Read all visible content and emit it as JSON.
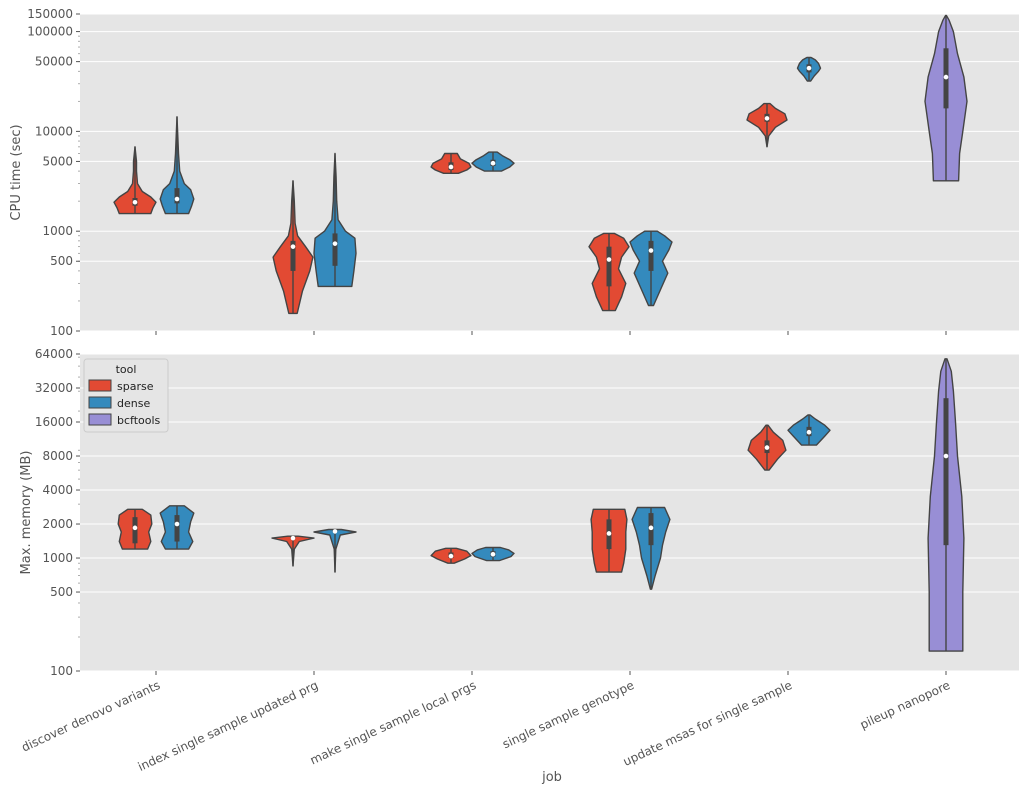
{
  "colors": {
    "sparse": "#E24A33",
    "dense": "#348ABD",
    "bcftools": "#988ED5",
    "panel_bg": "#E5E5E5",
    "grid": "#FFFFFF",
    "edge": "#444444"
  },
  "chart_data": {
    "type": "violin",
    "xlabel": "job",
    "categories": [
      "discover denovo variants",
      "index single sample updated prg",
      "make single sample local prgs",
      "single sample genotype",
      "update msas for single sample",
      "pileup nanopore"
    ],
    "legend": {
      "title": "tool",
      "placement": "upper-left of bottom panel",
      "entries": [
        "sparse",
        "dense",
        "bcftools"
      ]
    },
    "panels": [
      {
        "ylabel": "CPU time (sec)",
        "yscale": "log",
        "ylim": [
          100,
          150000
        ],
        "yticks": [
          100,
          500,
          1000,
          5000,
          10000,
          50000,
          100000,
          150000
        ],
        "series": [
          {
            "name": "sparse",
            "category": "discover denovo variants",
            "min": 1500,
            "q1": 1800,
            "median": 1950,
            "q3": 2150,
            "max": 7000,
            "shape": [
              [
                1500,
                0.75
              ],
              [
                1700,
                0.85
              ],
              [
                1950,
                1.0
              ],
              [
                2200,
                0.75
              ],
              [
                2500,
                0.35
              ],
              [
                3000,
                0.12
              ],
              [
                4000,
                0.07
              ],
              [
                5000,
                0.07
              ],
              [
                7000,
                0.0
              ]
            ]
          },
          {
            "name": "dense",
            "category": "discover denovo variants",
            "min": 1500,
            "q1": 1900,
            "median": 2100,
            "q3": 2700,
            "max": 14000,
            "shape": [
              [
                1500,
                0.55
              ],
              [
                1800,
                0.7
              ],
              [
                2100,
                0.8
              ],
              [
                2600,
                0.65
              ],
              [
                3000,
                0.35
              ],
              [
                4000,
                0.13
              ],
              [
                6000,
                0.07
              ],
              [
                9000,
                0.04
              ],
              [
                14000,
                0.0
              ]
            ]
          },
          {
            "name": "sparse",
            "category": "index single sample updated prg",
            "min": 150,
            "q1": 400,
            "median": 700,
            "q3": 800,
            "max": 3200,
            "shape": [
              [
                150,
                0.2
              ],
              [
                250,
                0.45
              ],
              [
                400,
                0.8
              ],
              [
                550,
                0.95
              ],
              [
                700,
                0.6
              ],
              [
                900,
                0.22
              ],
              [
                1200,
                0.1
              ],
              [
                2000,
                0.06
              ],
              [
                3200,
                0.0
              ]
            ]
          },
          {
            "name": "dense",
            "category": "index single sample updated prg",
            "min": 280,
            "q1": 450,
            "median": 750,
            "q3": 950,
            "max": 6000,
            "shape": [
              [
                280,
                0.8
              ],
              [
                400,
                0.9
              ],
              [
                600,
                1.0
              ],
              [
                850,
                0.95
              ],
              [
                1000,
                0.5
              ],
              [
                1300,
                0.15
              ],
              [
                2000,
                0.08
              ],
              [
                3500,
                0.05
              ],
              [
                6000,
                0.0
              ]
            ]
          },
          {
            "name": "sparse",
            "category": "make single sample local prgs",
            "min": 3800,
            "q1": 4100,
            "median": 4400,
            "q3": 4900,
            "max": 6000,
            "shape": [
              [
                3800,
                0.35
              ],
              [
                4100,
                0.75
              ],
              [
                4400,
                0.95
              ],
              [
                4800,
                0.85
              ],
              [
                5300,
                0.45
              ],
              [
                6000,
                0.3
              ]
            ]
          },
          {
            "name": "dense",
            "category": "make single sample local prgs",
            "min": 4000,
            "q1": 4500,
            "median": 4800,
            "q3": 5200,
            "max": 6200,
            "shape": [
              [
                4000,
                0.4
              ],
              [
                4400,
                0.8
              ],
              [
                4800,
                1.0
              ],
              [
                5200,
                0.8
              ],
              [
                5700,
                0.45
              ],
              [
                6200,
                0.2
              ]
            ]
          },
          {
            "name": "sparse",
            "category": "single sample genotype",
            "min": 160,
            "q1": 280,
            "median": 520,
            "q3": 700,
            "max": 950,
            "shape": [
              [
                160,
                0.3
              ],
              [
                220,
                0.6
              ],
              [
                300,
                0.8
              ],
              [
                420,
                0.45
              ],
              [
                550,
                0.6
              ],
              [
                700,
                0.95
              ],
              [
                850,
                0.7
              ],
              [
                950,
                0.25
              ]
            ]
          },
          {
            "name": "dense",
            "category": "single sample genotype",
            "min": 180,
            "q1": 400,
            "median": 640,
            "q3": 800,
            "max": 1000,
            "shape": [
              [
                180,
                0.12
              ],
              [
                260,
                0.45
              ],
              [
                380,
                0.8
              ],
              [
                500,
                0.55
              ],
              [
                650,
                0.85
              ],
              [
                780,
                1.0
              ],
              [
                900,
                0.65
              ],
              [
                1000,
                0.3
              ]
            ]
          },
          {
            "name": "sparse",
            "category": "update msas for single sample",
            "min": 7000,
            "q1": 12500,
            "median": 13500,
            "q3": 15000,
            "max": 19000,
            "shape": [
              [
                7000,
                0.0
              ],
              [
                9000,
                0.08
              ],
              [
                11000,
                0.4
              ],
              [
                13000,
                0.95
              ],
              [
                15000,
                0.85
              ],
              [
                17000,
                0.4
              ],
              [
                19000,
                0.15
              ]
            ]
          },
          {
            "name": "dense",
            "category": "update msas for single sample",
            "min": 32000,
            "q1": 39000,
            "median": 43000,
            "q3": 47000,
            "max": 55000,
            "shape": [
              [
                32000,
                0.08
              ],
              [
                36000,
                0.25
              ],
              [
                40000,
                0.45
              ],
              [
                43000,
                0.55
              ],
              [
                48000,
                0.45
              ],
              [
                52000,
                0.3
              ],
              [
                55000,
                0.1
              ]
            ]
          },
          {
            "name": "bcftools",
            "category": "pileup nanopore",
            "min": 3200,
            "q1": 17000,
            "median": 35000,
            "q3": 68000,
            "max": 145000,
            "shape": [
              [
                3200,
                0.6
              ],
              [
                6000,
                0.65
              ],
              [
                10000,
                0.8
              ],
              [
                20000,
                1.0
              ],
              [
                35000,
                0.85
              ],
              [
                60000,
                0.55
              ],
              [
                100000,
                0.35
              ],
              [
                130000,
                0.15
              ],
              [
                145000,
                0.02
              ]
            ]
          }
        ]
      },
      {
        "ylabel": "Max. memory (MB)",
        "yscale": "log",
        "ylim": [
          100,
          64000
        ],
        "yticks": [
          100,
          500,
          1000,
          2000,
          4000,
          8000,
          16000,
          32000,
          64000
        ],
        "series": [
          {
            "name": "sparse",
            "category": "discover denovo variants",
            "min": 1200,
            "q1": 1350,
            "median": 1850,
            "q3": 2300,
            "max": 2700,
            "shape": [
              [
                1200,
                0.6
              ],
              [
                1400,
                0.75
              ],
              [
                1700,
                0.65
              ],
              [
                2000,
                0.8
              ],
              [
                2400,
                0.75
              ],
              [
                2700,
                0.35
              ]
            ]
          },
          {
            "name": "dense",
            "category": "discover denovo variants",
            "min": 1200,
            "q1": 1400,
            "median": 2000,
            "q3": 2400,
            "max": 2900,
            "shape": [
              [
                1200,
                0.55
              ],
              [
                1400,
                0.75
              ],
              [
                1700,
                0.55
              ],
              [
                2100,
                0.65
              ],
              [
                2500,
                0.8
              ],
              [
                2900,
                0.35
              ]
            ]
          },
          {
            "name": "sparse",
            "category": "index single sample updated prg",
            "min": 850,
            "q1": 1480,
            "median": 1500,
            "q3": 1540,
            "max": 1560,
            "shape": [
              [
                850,
                0.0
              ],
              [
                1200,
                0.06
              ],
              [
                1400,
                0.3
              ],
              [
                1500,
                1.0
              ],
              [
                1560,
                0.25
              ]
            ]
          },
          {
            "name": "dense",
            "category": "index single sample updated prg",
            "min": 750,
            "q1": 1700,
            "median": 1720,
            "q3": 1750,
            "max": 1790,
            "shape": [
              [
                750,
                0.0
              ],
              [
                1200,
                0.04
              ],
              [
                1600,
                0.25
              ],
              [
                1700,
                1.0
              ],
              [
                1790,
                0.3
              ]
            ]
          },
          {
            "name": "sparse",
            "category": "make single sample local prgs",
            "min": 900,
            "q1": 1000,
            "median": 1040,
            "q3": 1120,
            "max": 1220,
            "shape": [
              [
                900,
                0.15
              ],
              [
                980,
                0.65
              ],
              [
                1050,
                0.95
              ],
              [
                1150,
                0.75
              ],
              [
                1220,
                0.25
              ]
            ]
          },
          {
            "name": "dense",
            "category": "make single sample local prgs",
            "min": 950,
            "q1": 1030,
            "median": 1080,
            "q3": 1150,
            "max": 1240,
            "shape": [
              [
                950,
                0.3
              ],
              [
                1030,
                0.85
              ],
              [
                1100,
                1.0
              ],
              [
                1180,
                0.75
              ],
              [
                1240,
                0.35
              ]
            ]
          },
          {
            "name": "sparse",
            "category": "single sample genotype",
            "min": 750,
            "q1": 1200,
            "median": 1650,
            "q3": 2200,
            "max": 2700,
            "shape": [
              [
                750,
                0.6
              ],
              [
                900,
                0.7
              ],
              [
                1200,
                0.8
              ],
              [
                1700,
                0.8
              ],
              [
                2200,
                0.85
              ],
              [
                2700,
                0.75
              ]
            ]
          },
          {
            "name": "dense",
            "category": "single sample genotype",
            "min": 530,
            "q1": 1300,
            "median": 1850,
            "q3": 2500,
            "max": 2800,
            "shape": [
              [
                530,
                0.03
              ],
              [
                700,
                0.2
              ],
              [
                1000,
                0.45
              ],
              [
                1300,
                0.55
              ],
              [
                1700,
                0.7
              ],
              [
                2200,
                0.9
              ],
              [
                2800,
                0.65
              ]
            ]
          },
          {
            "name": "sparse",
            "category": "update msas for single sample",
            "min": 6000,
            "q1": 8500,
            "median": 9500,
            "q3": 11000,
            "max": 15000,
            "shape": [
              [
                6000,
                0.1
              ],
              [
                7500,
                0.5
              ],
              [
                9000,
                0.9
              ],
              [
                11000,
                0.75
              ],
              [
                13000,
                0.3
              ],
              [
                15000,
                0.05
              ]
            ]
          },
          {
            "name": "dense",
            "category": "update msas for single sample",
            "min": 10000,
            "q1": 12000,
            "median": 13000,
            "q3": 14500,
            "max": 18500,
            "shape": [
              [
                10000,
                0.35
              ],
              [
                12000,
                0.75
              ],
              [
                13500,
                1.0
              ],
              [
                15000,
                0.75
              ],
              [
                17000,
                0.3
              ],
              [
                18500,
                0.05
              ]
            ]
          },
          {
            "name": "bcftools",
            "category": "pileup nanopore",
            "min": 150,
            "q1": 1300,
            "median": 8000,
            "q3": 26000,
            "max": 58000,
            "shape": [
              [
                150,
                0.8
              ],
              [
                500,
                0.8
              ],
              [
                1500,
                0.85
              ],
              [
                3500,
                0.75
              ],
              [
                8000,
                0.55
              ],
              [
                16000,
                0.45
              ],
              [
                30000,
                0.35
              ],
              [
                45000,
                0.25
              ],
              [
                58000,
                0.05
              ]
            ]
          }
        ]
      }
    ]
  }
}
